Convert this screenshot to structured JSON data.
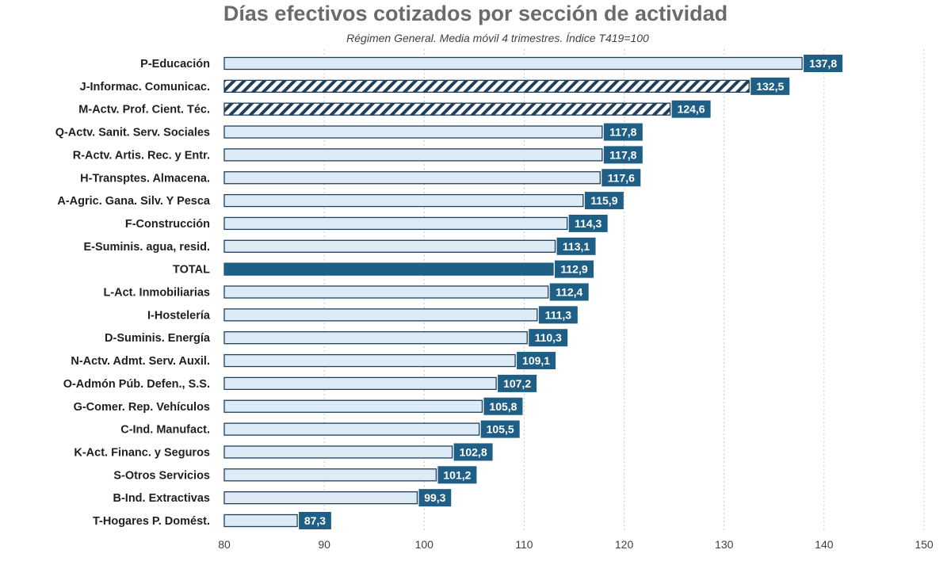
{
  "chart_data": {
    "type": "bar",
    "orientation": "horizontal",
    "title": "Días efectivos cotizados por sección de actividad",
    "subtitle": "Régimen General. Media móvil 4 trimestres. Índice T419=100",
    "categories": [
      "P-Educación",
      "J-Informac. Comunicac.",
      "M-Actv. Prof. Cient. Téc.",
      "Q-Actv. Sanit. Serv. Sociales",
      "R-Actv. Artis. Rec. y Entr.",
      "H-Transptes. Almacena.",
      "A-Agric. Gana. Silv. Y Pesca",
      "F-Construcción",
      "E-Suminis. agua, resid.",
      "TOTAL",
      "L-Act. Inmobiliarias",
      "I-Hostelería",
      "D-Suminis. Energía",
      "N-Actv. Admt. Serv. Auxil.",
      "O-Admón Púb. Defen., S.S.",
      "G-Comer. Rep. Vehículos",
      "C-Ind. Manufact.",
      "K-Act. Financ. y Seguros",
      "S-Otros Servicios",
      "B-Ind. Extractivas",
      "T-Hogares P. Domést."
    ],
    "values": [
      137.8,
      132.5,
      124.6,
      117.8,
      117.8,
      117.6,
      115.9,
      114.3,
      113.1,
      112.9,
      112.4,
      111.3,
      110.3,
      109.1,
      107.2,
      105.8,
      105.5,
      102.8,
      101.2,
      99.3,
      87.3
    ],
    "value_labels": [
      "137,8",
      "132,5",
      "124,6",
      "117,8",
      "117,8",
      "117,6",
      "115,9",
      "114,3",
      "113,1",
      "112,9",
      "112,4",
      "111,3",
      "110,3",
      "109,1",
      "107,2",
      "105,8",
      "105,5",
      "102,8",
      "101,2",
      "99,3",
      "87,3"
    ],
    "bar_styles": [
      "plain",
      "hatched",
      "hatched",
      "plain",
      "plain",
      "plain",
      "plain",
      "plain",
      "plain",
      "total",
      "plain",
      "plain",
      "plain",
      "plain",
      "plain",
      "plain",
      "plain",
      "plain",
      "plain",
      "plain",
      "plain"
    ],
    "xlim": [
      80,
      150
    ],
    "xticks": [
      80,
      90,
      100,
      110,
      120,
      130,
      140,
      150
    ],
    "grid": "vertical dotted",
    "colors": {
      "bar_fill": "#ddebf7",
      "bar_stroke": "#1f3f5b",
      "total_fill": "#1f5f86",
      "label_bg": "#1f5f86",
      "hatch": "#1f3f5b"
    }
  }
}
